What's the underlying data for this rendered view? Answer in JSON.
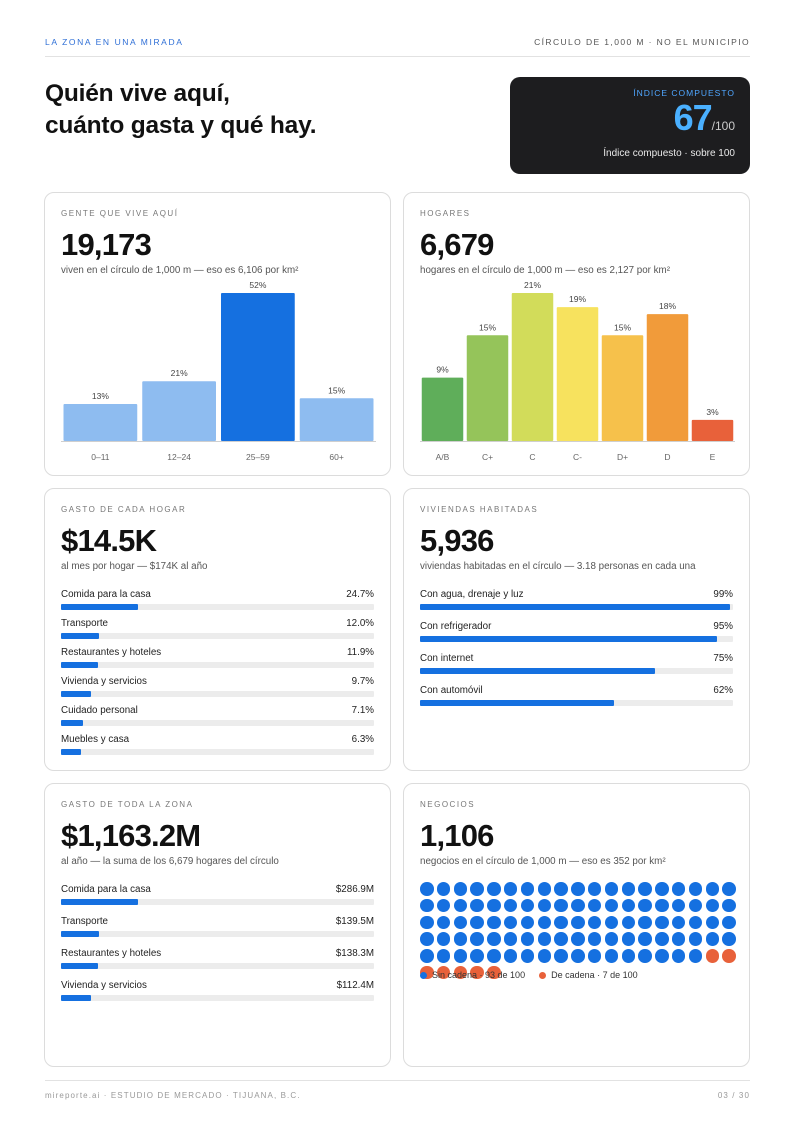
{
  "header": {
    "left": "LA ZONA EN UNA MIRADA",
    "right": "CÍRCULO DE 1,000 M · NO EL MUNICIPIO"
  },
  "hero": {
    "line1": "Quién vive aquí,",
    "line2": "cuánto gasta y qué hay."
  },
  "index_card": {
    "label": "ÍNDICE COMPUESTO",
    "value": "67",
    "out_of": "/100",
    "subtitle": "Índice compuesto · sobre 100",
    "bg_color": "#1d1d1f",
    "accent_color": "#4ab0ff"
  },
  "people": {
    "label": "GENTE QUE VIVE AQUÍ",
    "value": "19,173",
    "subtitle": "viven en el círculo de 1,000 m — eso es 6,106 por km²"
  },
  "households": {
    "label": "HOGARES",
    "value": "6,679",
    "subtitle": "hogares en el círculo de 1,000 m — eso es 2,127 por km²"
  },
  "spend_household": {
    "label": "GASTO DE CADA HOGAR",
    "value": "$14.5K",
    "subtitle": "al mes por hogar — $174K al año",
    "items": [
      {
        "name": "Comida para la casa",
        "value": "24.7%",
        "fraction": 0.247
      },
      {
        "name": "Transporte",
        "value": "12.0%",
        "fraction": 0.12
      },
      {
        "name": "Restaurantes y hoteles",
        "value": "11.9%",
        "fraction": 0.119
      },
      {
        "name": "Vivienda y servicios",
        "value": "9.7%",
        "fraction": 0.097
      },
      {
        "name": "Cuidado personal",
        "value": "7.1%",
        "fraction": 0.071
      },
      {
        "name": "Muebles y casa",
        "value": "6.3%",
        "fraction": 0.063
      }
    ]
  },
  "dwellings": {
    "label": "VIVIENDAS HABITADAS",
    "value": "5,936",
    "subtitle": "viviendas habitadas en el círculo — 3.18 personas en cada una",
    "items": [
      {
        "name": "Con agua, drenaje y luz",
        "value": "99%",
        "fraction": 0.99
      },
      {
        "name": "Con refrigerador",
        "value": "95%",
        "fraction": 0.95
      },
      {
        "name": "Con internet",
        "value": "75%",
        "fraction": 0.75
      },
      {
        "name": "Con automóvil",
        "value": "62%",
        "fraction": 0.62
      }
    ]
  },
  "spend_zone": {
    "label": "GASTO DE TODA LA ZONA",
    "value": "$1,163.2M",
    "subtitle": "al año — la suma de los 6,679 hogares del círculo",
    "items": [
      {
        "name": "Comida para la casa",
        "value": "$286.9M",
        "fraction": 0.247
      },
      {
        "name": "Transporte",
        "value": "$139.5M",
        "fraction": 0.12
      },
      {
        "name": "Restaurantes y hoteles",
        "value": "$138.3M",
        "fraction": 0.119
      },
      {
        "name": "Vivienda y servicios",
        "value": "$112.4M",
        "fraction": 0.097
      }
    ]
  },
  "businesses": {
    "label": "NEGOCIOS",
    "value": "1,106",
    "subtitle": "negocios en el círculo de 1,000 m — eso es 352 por km²",
    "independent_count": 93,
    "chain_count": 7,
    "legend_independent": "Sin cadena · 93 de 100",
    "legend_chain": "De cadena · 7 de 100",
    "independent_color": "#1570e0",
    "chain_color": "#e8613a"
  },
  "footer": {
    "left": "mireporte.ai · ESTUDIO DE MERCADO · TIJUANA, B.C.",
    "right": "03 / 30"
  },
  "chart_data": [
    {
      "type": "bar",
      "categories": [
        "0–11",
        "12–24",
        "25–59",
        "60+"
      ],
      "values": [
        13,
        21,
        52,
        15
      ],
      "value_labels": [
        "13%",
        "21%",
        "52%",
        "15%"
      ],
      "colors": [
        "#8ebcf0",
        "#8ebcf0",
        "#1570e0",
        "#8ebcf0"
      ],
      "ylim": [
        0,
        52
      ],
      "grid": false
    },
    {
      "type": "bar",
      "categories": [
        "A/B",
        "C+",
        "C",
        "C-",
        "D+",
        "D",
        "E"
      ],
      "values": [
        9,
        15,
        21,
        19,
        15,
        18,
        3
      ],
      "value_labels": [
        "9%",
        "15%",
        "21%",
        "19%",
        "15%",
        "18%",
        "3%"
      ],
      "colors": [
        "#5fae5a",
        "#95c45a",
        "#d2dc5a",
        "#f7e25e",
        "#f6c14b",
        "#f19b3a",
        "#e8613a"
      ],
      "ylim": [
        0,
        21
      ],
      "grid": false
    }
  ]
}
